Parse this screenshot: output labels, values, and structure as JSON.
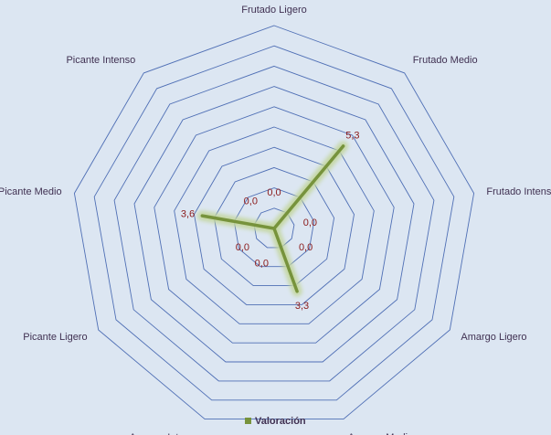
{
  "chart_data": {
    "type": "radar",
    "categories": [
      "Frutado Ligero",
      "Frutado Medio",
      "Frutado Intenso",
      "Amargo Ligero",
      "Amargo Medio",
      "Amargo Intenso",
      "Picante Ligero",
      "Picante Medio",
      "Picante Intenso"
    ],
    "series": [
      {
        "name": "Valoración",
        "values": [
          0,
          5.3,
          0,
          0,
          3.3,
          0,
          0,
          3.6,
          0
        ],
        "value_labels": [
          "0,0",
          "5,3",
          "0,0",
          "0,0",
          "3,3",
          "0,0",
          "0,0",
          "3,6",
          "0,0"
        ]
      }
    ],
    "rmax": 10,
    "ring_count": 10,
    "colors": {
      "grid": "#4f6fb5",
      "series": "#77933c",
      "glow": "#c3d69b",
      "data_label": "#8b1a1a",
      "category_label": "#403152",
      "background": "#dce6f2"
    },
    "legend": {
      "position": "bottom"
    }
  }
}
